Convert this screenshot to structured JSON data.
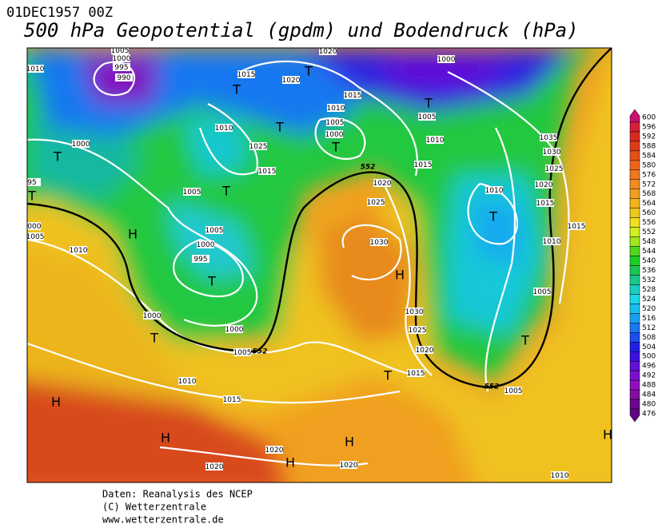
{
  "header": {
    "date": "01DEC1957 00Z",
    "title": "500 hPa Geopotential (gpdm) und Bodendruck (hPa)"
  },
  "footer": [
    "Daten: Reanalysis des NCEP",
    "(C) Wetterzentrale",
    "www.wetterzentrale.de"
  ],
  "map": {
    "isobar_labels": [
      "1005",
      "1000",
      "995",
      "990",
      "1010",
      "1020",
      "1000",
      "1015",
      "1020",
      "1015",
      "1010",
      "1005",
      "1005",
      "1000",
      "1010",
      "1025",
      "1010",
      "1000",
      "1015",
      "1015",
      "1035",
      "1030",
      "1025",
      "1020",
      "1020",
      "1005",
      "1010",
      "1025",
      "1015",
      "1000",
      "1005",
      "1010",
      "1005",
      "1000",
      "995",
      "1030",
      "1010",
      "1015",
      "1005",
      "1000",
      "1030",
      "1025",
      "1000",
      "1005",
      "1020",
      "1015",
      "1010",
      "1015",
      "1005",
      "1020",
      "1020",
      "1020",
      "1010",
      "95"
    ],
    "contour_labels": [
      "552",
      "552",
      "552"
    ],
    "pressure_centers": [
      "T",
      "T",
      "T",
      "T",
      "T",
      "T",
      "T",
      "T",
      "T",
      "H",
      "H",
      "T",
      "T",
      "T",
      "T",
      "H",
      "H",
      "H",
      "H",
      "H"
    ]
  },
  "colorbar": {
    "ticks": [
      600,
      596,
      592,
      588,
      584,
      580,
      576,
      572,
      568,
      564,
      560,
      556,
      552,
      548,
      544,
      540,
      536,
      532,
      528,
      524,
      520,
      516,
      512,
      508,
      504,
      500,
      496,
      492,
      488,
      484,
      480,
      476
    ],
    "colors": [
      "#c8106e",
      "#d81e3a",
      "#d82a20",
      "#e03c18",
      "#e85018",
      "#f06418",
      "#f07820",
      "#f08c20",
      "#f0a020",
      "#f0b41c",
      "#f0c81c",
      "#f0e01c",
      "#d2f01c",
      "#a0e81c",
      "#50d81c",
      "#18d020",
      "#18c850",
      "#18c88c",
      "#18d0c0",
      "#18d8e8",
      "#18c0f0",
      "#18a0f0",
      "#1878f0",
      "#1850f0",
      "#2020e8",
      "#3c10e0",
      "#6010d8",
      "#7c10d0",
      "#9010c0",
      "#8010a0",
      "#6c0890",
      "#600880"
    ]
  }
}
